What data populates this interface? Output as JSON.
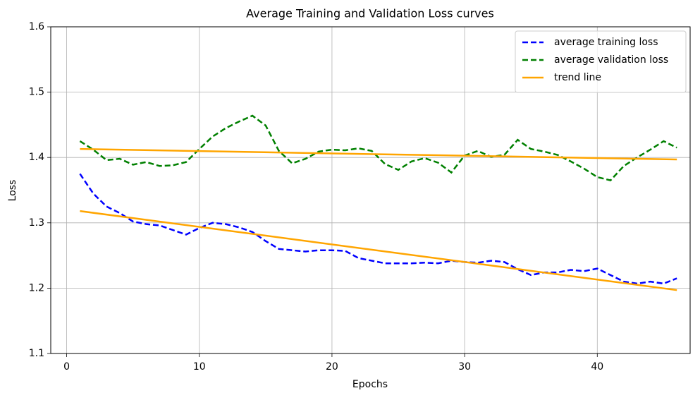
{
  "chart_data": {
    "type": "line",
    "title": "Average Training and Validation Loss curves",
    "x_label": "Epochs",
    "y_label": "Loss",
    "x": [
      1,
      2,
      3,
      4,
      5,
      6,
      7,
      8,
      9,
      10,
      11,
      12,
      13,
      14,
      15,
      16,
      17,
      18,
      19,
      20,
      21,
      22,
      23,
      24,
      25,
      26,
      27,
      28,
      29,
      30,
      31,
      32,
      33,
      34,
      35,
      36,
      37,
      38,
      39,
      40,
      41,
      42,
      43,
      44,
      45,
      46
    ],
    "series": [
      {
        "name": "average training loss",
        "color": "#0000ff",
        "linestyle": "dashed",
        "values": [
          1.375,
          1.345,
          1.325,
          1.315,
          1.302,
          1.298,
          1.296,
          1.289,
          1.282,
          1.292,
          1.3,
          1.298,
          1.293,
          1.286,
          1.272,
          1.26,
          1.258,
          1.256,
          1.258,
          1.258,
          1.257,
          1.246,
          1.242,
          1.238,
          1.238,
          1.238,
          1.239,
          1.238,
          1.242,
          1.24,
          1.239,
          1.242,
          1.24,
          1.229,
          1.22,
          1.224,
          1.224,
          1.228,
          1.226,
          1.23,
          1.22,
          1.21,
          1.207,
          1.21,
          1.207,
          1.215
        ]
      },
      {
        "name": "average validation loss",
        "color": "#008000",
        "linestyle": "dashed",
        "values": [
          1.425,
          1.412,
          1.396,
          1.398,
          1.389,
          1.393,
          1.387,
          1.388,
          1.393,
          1.413,
          1.432,
          1.445,
          1.455,
          1.464,
          1.449,
          1.41,
          1.391,
          1.398,
          1.409,
          1.412,
          1.411,
          1.414,
          1.41,
          1.39,
          1.381,
          1.394,
          1.399,
          1.392,
          1.377,
          1.403,
          1.41,
          1.401,
          1.404,
          1.427,
          1.413,
          1.409,
          1.404,
          1.394,
          1.383,
          1.37,
          1.365,
          1.387,
          1.4,
          1.412,
          1.425,
          1.415
        ]
      }
    ],
    "trend_lines": {
      "name": "trend line",
      "color": "#ffa500",
      "linestyle": "solid",
      "lines": [
        {
          "x": [
            1,
            46
          ],
          "values": [
            1.318,
            1.197
          ]
        },
        {
          "x": [
            1,
            46
          ],
          "values": [
            1.413,
            1.397
          ]
        }
      ]
    },
    "xlim": [
      -1.2,
      47
    ],
    "xticks": [
      0,
      10,
      20,
      30,
      40
    ],
    "ylim": [
      1.1,
      1.6
    ],
    "yticks": [
      {
        "value": 1.1,
        "label": "1.1"
      },
      {
        "value": 1.2,
        "label": "1.2"
      },
      {
        "value": 1.3,
        "label": "1.3"
      },
      {
        "value": 1.4,
        "label": "1.4"
      },
      {
        "value": 1.5,
        "label": "1.5"
      },
      {
        "value": 1.6,
        "label": "1.6"
      }
    ],
    "grid": true,
    "legend": "upper right"
  }
}
